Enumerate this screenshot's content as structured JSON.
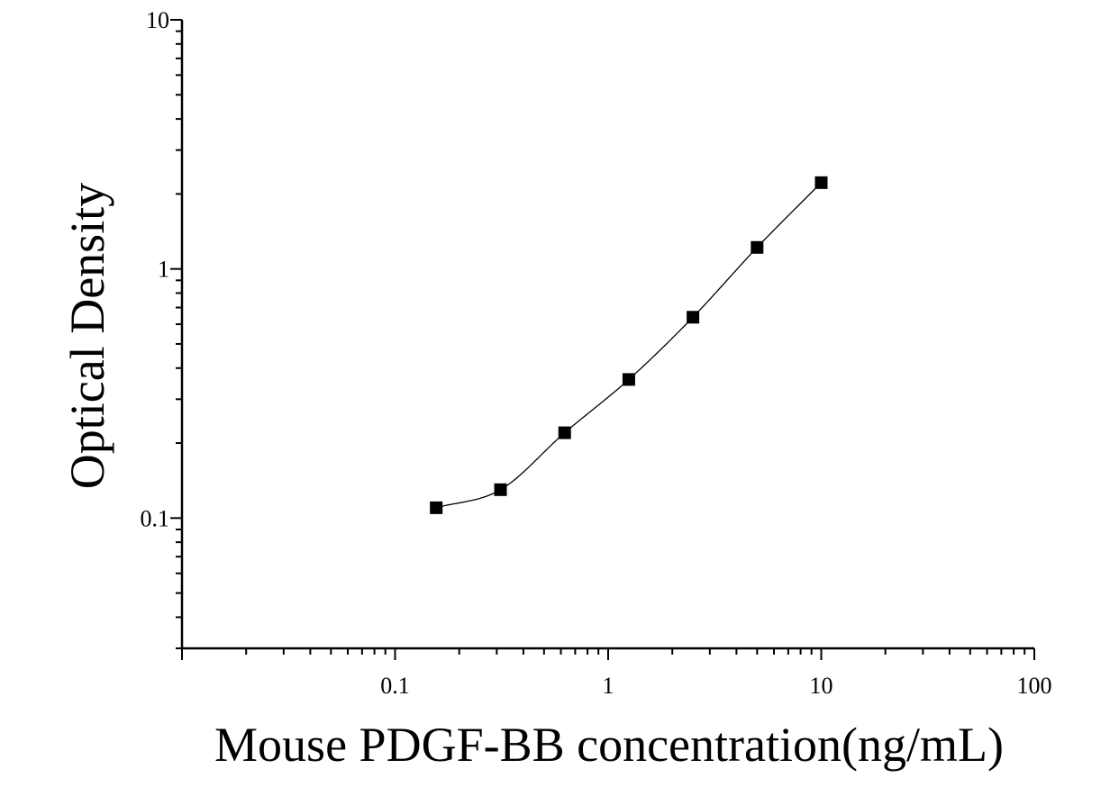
{
  "chart_data": {
    "type": "scatter",
    "title": "",
    "xlabel": "Mouse PDGF-BB concentration(ng/mL)",
    "ylabel": "Optical Density",
    "x_scale": "log",
    "y_scale": "log",
    "xlim": [
      0.01,
      100
    ],
    "ylim": [
      0.03,
      10
    ],
    "x_tick_labels": [
      {
        "value": 0.1,
        "label": "0.1"
      },
      {
        "value": 1,
        "label": "1"
      },
      {
        "value": 10,
        "label": "10"
      },
      {
        "value": 100,
        "label": "100"
      }
    ],
    "y_tick_labels": [
      {
        "value": 0.1,
        "label": "0.1"
      },
      {
        "value": 1,
        "label": "1"
      },
      {
        "value": 10,
        "label": "10"
      }
    ],
    "grid": false,
    "legend": "none",
    "marker": "square",
    "series": [
      {
        "points": [
          {
            "x": 0.156,
            "y": 0.11
          },
          {
            "x": 0.3125,
            "y": 0.13
          },
          {
            "x": 0.625,
            "y": 0.22
          },
          {
            "x": 1.25,
            "y": 0.36
          },
          {
            "x": 2.5,
            "y": 0.64
          },
          {
            "x": 5,
            "y": 1.22
          },
          {
            "x": 10,
            "y": 2.22
          }
        ]
      }
    ],
    "fit_curve": "smooth",
    "colors": {
      "marker": "#000000",
      "curve": "#000000",
      "axis": "#000000"
    }
  }
}
